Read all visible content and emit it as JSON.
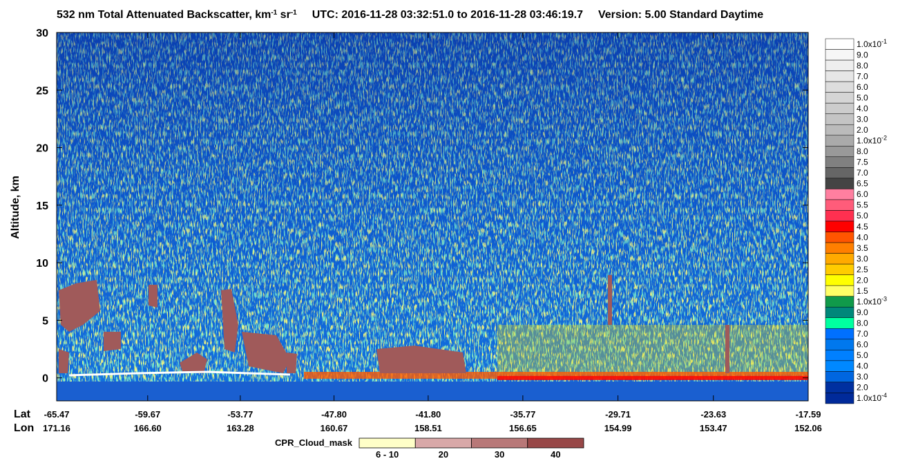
{
  "chart_data": {
    "type": "heatmap",
    "title": {
      "text": "532 nm Total Attenuated Backscatter, km",
      "sup1": "-1",
      "mid": " sr",
      "sup2": "-1",
      "utc": "UTC:  2016-11-28 03:32:51.0  to  2016-11-28 03:46:19.7",
      "version": "Version: 5.00  Standard  Daytime"
    },
    "ylabel": "Altitude, km",
    "ylim": [
      -2,
      30
    ],
    "yticks": [
      0,
      5,
      10,
      15,
      20,
      25,
      30
    ],
    "x_row_labels": [
      "Lat",
      "Lon"
    ],
    "xlim": [
      -65.47,
      -17.59
    ],
    "xticks": [
      {
        "value": -65.47,
        "label": "-65.47"
      },
      {
        "value": -59.67,
        "label": "-59.67"
      },
      {
        "value": -53.77,
        "label": "-53.77"
      },
      {
        "value": -47.8,
        "label": "-47.80"
      },
      {
        "value": -41.8,
        "label": "-41.80"
      },
      {
        "value": -35.77,
        "label": "-35.77"
      },
      {
        "value": -29.71,
        "label": "-29.71"
      },
      {
        "value": -23.63,
        "label": "-23.63"
      },
      {
        "value": -17.59,
        "label": "-17.59"
      }
    ],
    "lon_labels": [
      "171.16",
      "166.60",
      "163.28",
      "160.67",
      "158.51",
      "156.65",
      "154.99",
      "153.47",
      "152.06"
    ],
    "colorbar": [
      {
        "label": "1.0x10",
        "exponent": "-1",
        "color": "#ffffff"
      },
      {
        "label": "9.0",
        "color": "#f6f6f6"
      },
      {
        "label": "8.0",
        "color": "#eeeeee"
      },
      {
        "label": "7.0",
        "color": "#e6e6e6"
      },
      {
        "label": "6.0",
        "color": "#dddddd"
      },
      {
        "label": "5.0",
        "color": "#d5d5d5"
      },
      {
        "label": "4.0",
        "color": "#cccccc"
      },
      {
        "label": "3.0",
        "color": "#c4c4c4"
      },
      {
        "label": "2.0",
        "color": "#bbbbbb"
      },
      {
        "label": "1.0x10",
        "exponent": "-2",
        "color": "#aaaaaa"
      },
      {
        "label": "8.0",
        "color": "#999999"
      },
      {
        "label": "7.5",
        "color": "#808080"
      },
      {
        "label": "7.0",
        "color": "#666666"
      },
      {
        "label": "6.5",
        "color": "#444444"
      },
      {
        "label": "6.0",
        "color": "#ff7fa0"
      },
      {
        "label": "5.5",
        "color": "#ff5c7a"
      },
      {
        "label": "5.0",
        "color": "#ff3050"
      },
      {
        "label": "4.5",
        "color": "#ff0000"
      },
      {
        "label": "4.0",
        "color": "#ff5500"
      },
      {
        "label": "3.5",
        "color": "#ff7f00"
      },
      {
        "label": "3.0",
        "color": "#ffaa00"
      },
      {
        "label": "2.5",
        "color": "#ffcc00"
      },
      {
        "label": "2.0",
        "color": "#ffff00"
      },
      {
        "label": "1.5",
        "color": "#ffff66"
      },
      {
        "label": "1.0x10",
        "exponent": "-3",
        "color": "#109a4a"
      },
      {
        "label": "9.0",
        "color": "#00887a"
      },
      {
        "label": "8.0",
        "color": "#00ffa0"
      },
      {
        "label": "7.0",
        "color": "#0070ff"
      },
      {
        "label": "6.0",
        "color": "#0078ee"
      },
      {
        "label": "5.0",
        "color": "#0080ff"
      },
      {
        "label": "4.0",
        "color": "#0088ff"
      },
      {
        "label": "3.0",
        "color": "#0066e0"
      },
      {
        "label": "2.0",
        "color": "#0030a0"
      },
      {
        "label": "1.0x10",
        "exponent": "-4",
        "color": "#002a9a"
      }
    ],
    "cloud_mask": {
      "title": "CPR_Cloud_mask",
      "items": [
        {
          "label": "6 - 10",
          "color": "#ffffc8"
        },
        {
          "label": "20",
          "color": "#d8a8a8"
        },
        {
          "label": "30",
          "color": "#b87878"
        },
        {
          "label": "40",
          "color": "#984848"
        }
      ]
    }
  }
}
